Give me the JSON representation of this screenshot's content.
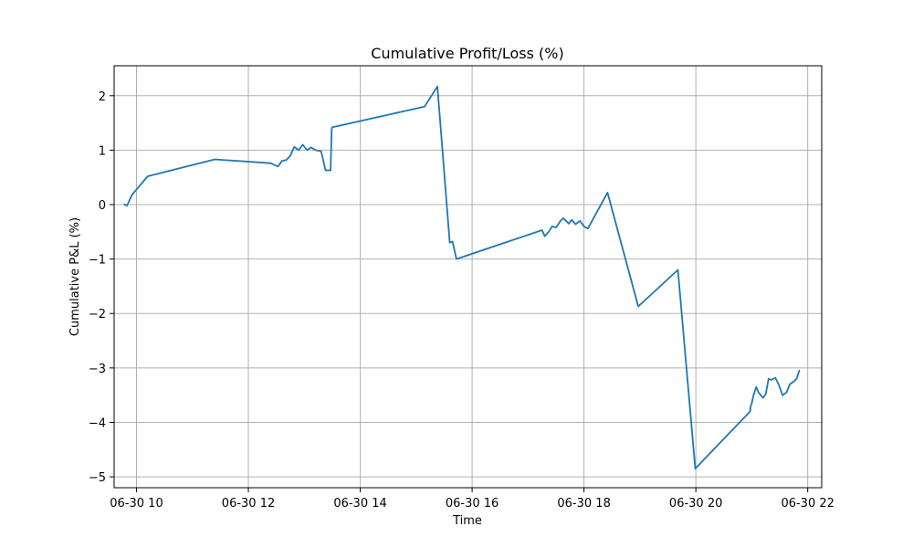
{
  "chart_data": {
    "type": "line",
    "title": "Cumulative Profit/Loss (%)",
    "xlabel": "Time",
    "ylabel": "Cumulative P&L (%)",
    "grid": true,
    "line_color": "#1f77b4",
    "x_unit": "hours on 06-30",
    "xlim": [
      9.6,
      22.25
    ],
    "ylim": [
      -5.2,
      2.55
    ],
    "x_ticks": [
      {
        "value": 10,
        "label": "06-30 10"
      },
      {
        "value": 12,
        "label": "06-30 12"
      },
      {
        "value": 14,
        "label": "06-30 14"
      },
      {
        "value": 16,
        "label": "06-30 16"
      },
      {
        "value": 18,
        "label": "06-30 18"
      },
      {
        "value": 20,
        "label": "06-30 20"
      },
      {
        "value": 22,
        "label": "06-30 22"
      }
    ],
    "y_ticks": [
      {
        "value": 2,
        "label": "2"
      },
      {
        "value": 1,
        "label": "1"
      },
      {
        "value": 0,
        "label": "0"
      },
      {
        "value": -1,
        "label": "−1"
      },
      {
        "value": -2,
        "label": "−2"
      },
      {
        "value": -3,
        "label": "−3"
      },
      {
        "value": -4,
        "label": "−4"
      },
      {
        "value": -5,
        "label": "−5"
      }
    ],
    "series": [
      {
        "x": [
          9.77,
          9.83,
          9.92,
          10.2,
          11.4,
          12.4,
          12.53,
          12.6,
          12.68,
          12.75,
          12.82,
          12.9,
          12.97,
          13.05,
          13.12,
          13.2,
          13.3,
          13.38,
          13.47,
          13.49,
          13.5,
          15.15,
          15.38,
          15.6,
          15.65,
          15.72,
          17.25,
          17.3,
          17.37,
          17.43,
          17.5,
          17.58,
          17.63,
          17.68,
          17.73,
          17.78,
          17.85,
          17.93,
          18.0,
          18.07,
          18.42,
          18.97,
          19.68,
          19.99,
          20.97,
          20.98,
          21.0,
          21.03,
          21.08,
          21.12,
          21.2,
          21.25,
          21.3,
          21.35,
          21.42,
          21.48,
          21.55,
          21.62,
          21.68,
          21.75,
          21.8,
          21.85,
          21.86
        ],
        "y": [
          0.01,
          -0.02,
          0.18,
          0.52,
          0.83,
          0.76,
          0.7,
          0.8,
          0.82,
          0.9,
          1.06,
          1.0,
          1.1,
          1.0,
          1.05,
          1.0,
          0.98,
          0.63,
          0.63,
          1.38,
          1.42,
          1.8,
          2.17,
          -0.7,
          -0.68,
          -1.0,
          -0.47,
          -0.58,
          -0.5,
          -0.4,
          -0.42,
          -0.3,
          -0.25,
          -0.3,
          -0.35,
          -0.28,
          -0.36,
          -0.3,
          -0.4,
          -0.44,
          0.22,
          -1.87,
          -1.2,
          -4.85,
          -3.8,
          -3.7,
          -3.65,
          -3.5,
          -3.35,
          -3.45,
          -3.55,
          -3.48,
          -3.2,
          -3.22,
          -3.18,
          -3.3,
          -3.5,
          -3.45,
          -3.3,
          -3.25,
          -3.2,
          -3.05,
          -3.05
        ]
      }
    ]
  }
}
